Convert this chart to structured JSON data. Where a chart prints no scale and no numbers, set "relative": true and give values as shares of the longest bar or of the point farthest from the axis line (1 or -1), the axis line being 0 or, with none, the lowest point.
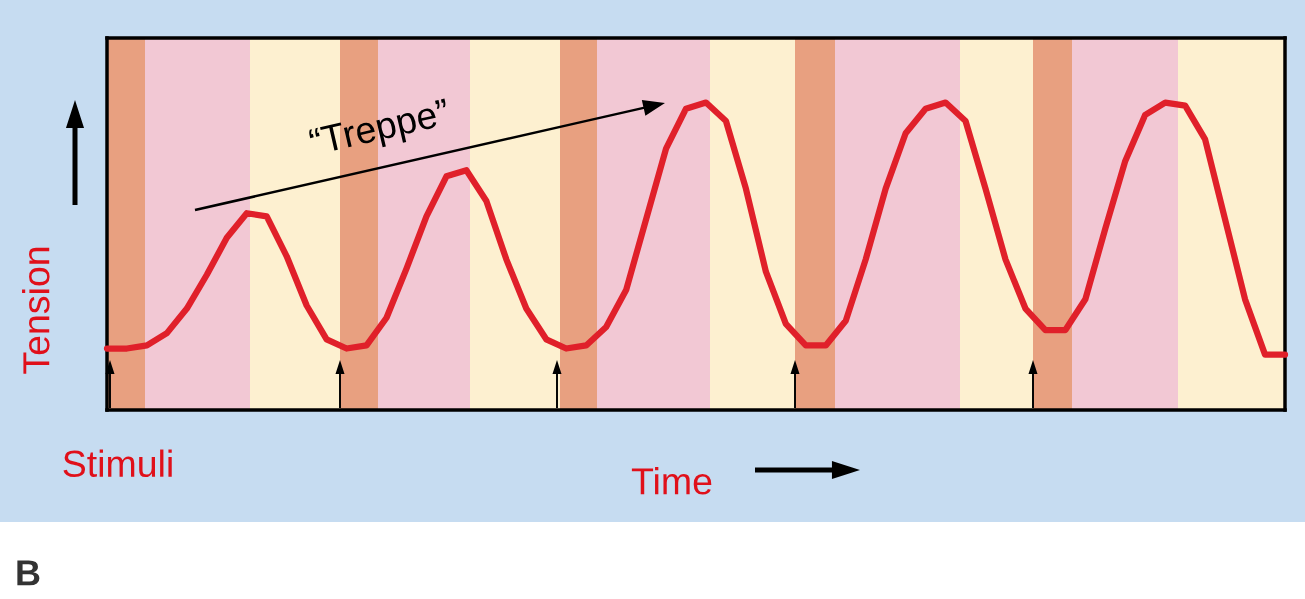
{
  "chart_data": {
    "type": "line",
    "relative": true,
    "xlabel": "Time",
    "ylabel": "Tension",
    "marker": "none",
    "line_style": "solid",
    "annotations": [
      "“Treppe”",
      "Stimuli",
      "B"
    ],
    "categories": [
      null,
      null,
      null,
      null,
      null,
      null,
      null,
      null,
      null,
      null,
      null,
      null,
      null,
      null,
      null,
      null,
      null,
      null,
      null,
      null,
      null,
      null,
      null,
      null,
      null,
      null,
      null,
      null,
      null,
      null,
      null,
      null,
      null,
      null,
      null,
      null,
      null,
      null,
      null,
      null,
      null,
      null,
      null,
      null,
      null,
      null,
      null,
      null,
      null,
      null,
      null,
      null,
      null,
      null,
      null,
      null,
      null,
      null,
      null,
      null
    ],
    "series": [
      {
        "color": "#e0202a",
        "values": [
          0.2,
          0.2,
          0.21,
          0.25,
          0.33,
          0.44,
          0.56,
          0.64,
          0.63,
          0.5,
          0.34,
          0.23,
          0.2,
          0.21,
          0.3,
          0.46,
          0.63,
          0.76,
          0.78,
          0.68,
          0.49,
          0.33,
          0.23,
          0.2,
          0.21,
          0.27,
          0.39,
          0.62,
          0.85,
          0.98,
          1.0,
          0.94,
          0.72,
          0.45,
          0.28,
          0.21,
          0.21,
          0.29,
          0.49,
          0.72,
          0.9,
          0.98,
          1.0,
          0.94,
          0.72,
          0.49,
          0.33,
          0.26,
          0.26,
          0.36,
          0.59,
          0.81,
          0.96,
          1.0,
          0.99,
          0.88,
          0.62,
          0.36,
          0.18,
          0.18
        ]
      }
    ]
  }
}
